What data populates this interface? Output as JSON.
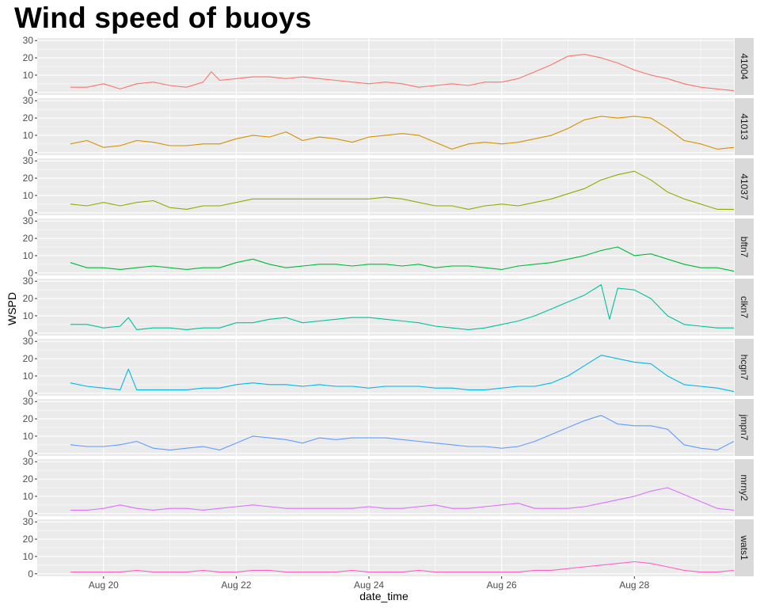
{
  "chart_data": {
    "type": "line",
    "title": "Wind speed of buoys",
    "xlabel": "date_time",
    "ylabel": "WSPD",
    "x_range": [
      "2018-08-19T00:00",
      "2018-08-29T12:00"
    ],
    "x_ticks": [
      {
        "date": "2018-08-20",
        "label": "Aug 20"
      },
      {
        "date": "2018-08-22",
        "label": "Aug 22"
      },
      {
        "date": "2018-08-24",
        "label": "Aug 24"
      },
      {
        "date": "2018-08-26",
        "label": "Aug 26"
      },
      {
        "date": "2018-08-28",
        "label": "Aug 28"
      }
    ],
    "ylim": [
      0,
      30
    ],
    "y_ticks": [
      0,
      10,
      20,
      30
    ],
    "grid": true,
    "facet_layout": "stacked rows with strip labels on the right",
    "panel_background": "#ebebeb",
    "grid_color": "#ffffff",
    "strip_background": "#d9d9d9",
    "series": [
      {
        "name": "41004",
        "color": "#F8766D",
        "x": [
          "2018-08-19T12:00",
          "2018-08-19T18:00",
          "2018-08-20T00:00",
          "2018-08-20T06:00",
          "2018-08-20T12:00",
          "2018-08-20T18:00",
          "2018-08-21T00:00",
          "2018-08-21T06:00",
          "2018-08-21T12:00",
          "2018-08-21T15:00",
          "2018-08-21T18:00",
          "2018-08-22T00:00",
          "2018-08-22T06:00",
          "2018-08-22T12:00",
          "2018-08-22T18:00",
          "2018-08-23T00:00",
          "2018-08-23T06:00",
          "2018-08-23T12:00",
          "2018-08-23T18:00",
          "2018-08-24T00:00",
          "2018-08-24T06:00",
          "2018-08-24T12:00",
          "2018-08-24T18:00",
          "2018-08-25T00:00",
          "2018-08-25T06:00",
          "2018-08-25T12:00",
          "2018-08-25T18:00",
          "2018-08-26T00:00",
          "2018-08-26T06:00",
          "2018-08-26T12:00",
          "2018-08-26T18:00",
          "2018-08-27T00:00",
          "2018-08-27T06:00",
          "2018-08-27T12:00",
          "2018-08-27T18:00",
          "2018-08-28T00:00",
          "2018-08-28T06:00",
          "2018-08-28T12:00",
          "2018-08-28T18:00",
          "2018-08-29T00:00",
          "2018-08-29T06:00",
          "2018-08-29T12:00"
        ],
        "values": [
          3,
          3,
          5,
          2,
          5,
          6,
          4,
          3,
          6,
          12,
          7,
          8,
          9,
          9,
          8,
          9,
          8,
          7,
          6,
          5,
          6,
          5,
          3,
          4,
          5,
          4,
          6,
          6,
          8,
          12,
          16,
          21,
          22,
          20,
          17,
          13,
          10,
          8,
          5,
          3,
          2,
          1
        ]
      },
      {
        "name": "41013",
        "color": "#D39200",
        "x": [
          "2018-08-19T12:00",
          "2018-08-19T18:00",
          "2018-08-20T00:00",
          "2018-08-20T06:00",
          "2018-08-20T12:00",
          "2018-08-20T18:00",
          "2018-08-21T00:00",
          "2018-08-21T06:00",
          "2018-08-21T12:00",
          "2018-08-21T18:00",
          "2018-08-22T00:00",
          "2018-08-22T06:00",
          "2018-08-22T12:00",
          "2018-08-22T18:00",
          "2018-08-23T00:00",
          "2018-08-23T06:00",
          "2018-08-23T12:00",
          "2018-08-23T18:00",
          "2018-08-24T00:00",
          "2018-08-24T06:00",
          "2018-08-24T12:00",
          "2018-08-24T18:00",
          "2018-08-25T00:00",
          "2018-08-25T06:00",
          "2018-08-25T12:00",
          "2018-08-25T18:00",
          "2018-08-26T00:00",
          "2018-08-26T06:00",
          "2018-08-26T12:00",
          "2018-08-26T18:00",
          "2018-08-27T00:00",
          "2018-08-27T06:00",
          "2018-08-27T12:00",
          "2018-08-27T18:00",
          "2018-08-28T00:00",
          "2018-08-28T06:00",
          "2018-08-28T12:00",
          "2018-08-28T18:00",
          "2018-08-29T00:00",
          "2018-08-29T06:00",
          "2018-08-29T12:00"
        ],
        "values": [
          5,
          7,
          3,
          4,
          7,
          6,
          4,
          4,
          5,
          5,
          8,
          10,
          9,
          12,
          7,
          9,
          8,
          6,
          9,
          10,
          11,
          10,
          6,
          2,
          5,
          6,
          5,
          6,
          8,
          10,
          14,
          19,
          21,
          20,
          21,
          20,
          14,
          7,
          5,
          2,
          3
        ]
      },
      {
        "name": "41037",
        "color": "#93AA00",
        "x": [
          "2018-08-19T12:00",
          "2018-08-19T18:00",
          "2018-08-20T00:00",
          "2018-08-20T06:00",
          "2018-08-20T12:00",
          "2018-08-20T18:00",
          "2018-08-21T00:00",
          "2018-08-21T06:00",
          "2018-08-21T12:00",
          "2018-08-21T18:00",
          "2018-08-22T00:00",
          "2018-08-22T06:00",
          "2018-08-23T00:00",
          "2018-08-23T12:00",
          "2018-08-24T00:00",
          "2018-08-24T06:00",
          "2018-08-24T12:00",
          "2018-08-24T18:00",
          "2018-08-25T00:00",
          "2018-08-25T06:00",
          "2018-08-25T12:00",
          "2018-08-25T18:00",
          "2018-08-26T00:00",
          "2018-08-26T06:00",
          "2018-08-26T12:00",
          "2018-08-26T18:00",
          "2018-08-27T00:00",
          "2018-08-27T06:00",
          "2018-08-27T12:00",
          "2018-08-27T18:00",
          "2018-08-28T00:00",
          "2018-08-28T06:00",
          "2018-08-28T12:00",
          "2018-08-28T18:00",
          "2018-08-29T00:00",
          "2018-08-29T06:00",
          "2018-08-29T12:00"
        ],
        "values": [
          5,
          4,
          6,
          4,
          6,
          7,
          3,
          2,
          4,
          4,
          6,
          8,
          8,
          8,
          8,
          9,
          8,
          6,
          4,
          4,
          2,
          4,
          5,
          4,
          6,
          8,
          11,
          14,
          19,
          22,
          24,
          19,
          12,
          8,
          5,
          2,
          2
        ]
      },
      {
        "name": "bftn7",
        "color": "#00BA38",
        "x": [
          "2018-08-19T12:00",
          "2018-08-19T18:00",
          "2018-08-20T00:00",
          "2018-08-20T06:00",
          "2018-08-20T12:00",
          "2018-08-20T18:00",
          "2018-08-21T00:00",
          "2018-08-21T06:00",
          "2018-08-21T12:00",
          "2018-08-21T18:00",
          "2018-08-22T00:00",
          "2018-08-22T06:00",
          "2018-08-22T12:00",
          "2018-08-22T18:00",
          "2018-08-23T00:00",
          "2018-08-23T06:00",
          "2018-08-23T12:00",
          "2018-08-23T18:00",
          "2018-08-24T00:00",
          "2018-08-24T06:00",
          "2018-08-24T12:00",
          "2018-08-24T18:00",
          "2018-08-25T00:00",
          "2018-08-25T06:00",
          "2018-08-25T12:00",
          "2018-08-25T18:00",
          "2018-08-26T00:00",
          "2018-08-26T06:00",
          "2018-08-26T12:00",
          "2018-08-26T18:00",
          "2018-08-27T00:00",
          "2018-08-27T06:00",
          "2018-08-27T12:00",
          "2018-08-27T18:00",
          "2018-08-28T00:00",
          "2018-08-28T06:00",
          "2018-08-28T12:00",
          "2018-08-28T18:00",
          "2018-08-29T00:00",
          "2018-08-29T06:00",
          "2018-08-29T12:00"
        ],
        "values": [
          6,
          3,
          3,
          2,
          3,
          4,
          3,
          2,
          3,
          3,
          6,
          8,
          5,
          3,
          4,
          5,
          5,
          4,
          5,
          5,
          4,
          5,
          3,
          4,
          4,
          3,
          2,
          4,
          5,
          6,
          8,
          10,
          13,
          15,
          10,
          11,
          8,
          5,
          3,
          3,
          1
        ]
      },
      {
        "name": "clkn7",
        "color": "#00C19F",
        "x": [
          "2018-08-19T12:00",
          "2018-08-19T18:00",
          "2018-08-20T00:00",
          "2018-08-20T06:00",
          "2018-08-20T09:00",
          "2018-08-20T12:00",
          "2018-08-20T18:00",
          "2018-08-21T00:00",
          "2018-08-21T06:00",
          "2018-08-21T12:00",
          "2018-08-21T18:00",
          "2018-08-22T00:00",
          "2018-08-22T06:00",
          "2018-08-22T12:00",
          "2018-08-22T18:00",
          "2018-08-23T00:00",
          "2018-08-23T06:00",
          "2018-08-23T12:00",
          "2018-08-23T18:00",
          "2018-08-24T00:00",
          "2018-08-24T06:00",
          "2018-08-24T12:00",
          "2018-08-24T18:00",
          "2018-08-25T00:00",
          "2018-08-25T06:00",
          "2018-08-25T12:00",
          "2018-08-25T18:00",
          "2018-08-26T00:00",
          "2018-08-26T06:00",
          "2018-08-26T12:00",
          "2018-08-26T18:00",
          "2018-08-27T00:00",
          "2018-08-27T06:00",
          "2018-08-27T12:00",
          "2018-08-27T15:00",
          "2018-08-27T18:00",
          "2018-08-28T00:00",
          "2018-08-28T06:00",
          "2018-08-28T12:00",
          "2018-08-28T18:00",
          "2018-08-29T00:00",
          "2018-08-29T06:00",
          "2018-08-29T12:00"
        ],
        "values": [
          5,
          5,
          3,
          4,
          9,
          2,
          3,
          3,
          2,
          3,
          3,
          6,
          6,
          8,
          9,
          6,
          7,
          8,
          9,
          9,
          8,
          7,
          6,
          4,
          3,
          2,
          3,
          5,
          7,
          10,
          14,
          18,
          22,
          28,
          8,
          26,
          25,
          20,
          10,
          5,
          4,
          3,
          3
        ]
      },
      {
        "name": "hcgn7",
        "color": "#00B9E3",
        "x": [
          "2018-08-19T12:00",
          "2018-08-19T18:00",
          "2018-08-20T00:00",
          "2018-08-20T06:00",
          "2018-08-20T09:00",
          "2018-08-20T12:00",
          "2018-08-20T18:00",
          "2018-08-21T00:00",
          "2018-08-21T06:00",
          "2018-08-21T12:00",
          "2018-08-21T18:00",
          "2018-08-22T00:00",
          "2018-08-22T06:00",
          "2018-08-22T12:00",
          "2018-08-22T18:00",
          "2018-08-23T00:00",
          "2018-08-23T06:00",
          "2018-08-23T12:00",
          "2018-08-23T18:00",
          "2018-08-24T00:00",
          "2018-08-24T06:00",
          "2018-08-24T12:00",
          "2018-08-24T18:00",
          "2018-08-25T00:00",
          "2018-08-25T06:00",
          "2018-08-25T12:00",
          "2018-08-25T18:00",
          "2018-08-26T00:00",
          "2018-08-26T06:00",
          "2018-08-26T12:00",
          "2018-08-26T18:00",
          "2018-08-27T00:00",
          "2018-08-27T06:00",
          "2018-08-27T12:00",
          "2018-08-27T18:00",
          "2018-08-28T00:00",
          "2018-08-28T06:00",
          "2018-08-28T12:00",
          "2018-08-28T18:00",
          "2018-08-29T00:00",
          "2018-08-29T06:00",
          "2018-08-29T12:00"
        ],
        "values": [
          6,
          4,
          3,
          2,
          14,
          2,
          2,
          2,
          2,
          3,
          3,
          5,
          6,
          5,
          5,
          4,
          5,
          4,
          4,
          3,
          4,
          4,
          4,
          3,
          3,
          2,
          2,
          3,
          4,
          4,
          6,
          10,
          16,
          22,
          20,
          18,
          17,
          10,
          5,
          4,
          3,
          1
        ]
      },
      {
        "name": "jmpn7",
        "color": "#619CFF",
        "x": [
          "2018-08-19T12:00",
          "2018-08-19T18:00",
          "2018-08-20T00:00",
          "2018-08-20T06:00",
          "2018-08-20T12:00",
          "2018-08-20T18:00",
          "2018-08-21T00:00",
          "2018-08-21T06:00",
          "2018-08-21T12:00",
          "2018-08-21T18:00",
          "2018-08-22T00:00",
          "2018-08-22T06:00",
          "2018-08-22T12:00",
          "2018-08-22T18:00",
          "2018-08-23T00:00",
          "2018-08-23T06:00",
          "2018-08-23T12:00",
          "2018-08-23T18:00",
          "2018-08-24T00:00",
          "2018-08-24T06:00",
          "2018-08-24T12:00",
          "2018-08-24T18:00",
          "2018-08-25T00:00",
          "2018-08-25T06:00",
          "2018-08-25T12:00",
          "2018-08-25T18:00",
          "2018-08-26T00:00",
          "2018-08-26T06:00",
          "2018-08-26T12:00",
          "2018-08-26T18:00",
          "2018-08-27T00:00",
          "2018-08-27T06:00",
          "2018-08-27T12:00",
          "2018-08-27T18:00",
          "2018-08-28T00:00",
          "2018-08-28T06:00",
          "2018-08-28T12:00",
          "2018-08-28T18:00",
          "2018-08-29T00:00",
          "2018-08-29T06:00",
          "2018-08-29T12:00"
        ],
        "values": [
          5,
          4,
          4,
          5,
          7,
          3,
          2,
          3,
          4,
          2,
          6,
          10,
          9,
          8,
          6,
          9,
          8,
          9,
          9,
          9,
          8,
          7,
          6,
          5,
          4,
          4,
          3,
          4,
          7,
          11,
          15,
          19,
          22,
          17,
          16,
          16,
          14,
          5,
          3,
          2,
          7
        ]
      },
      {
        "name": "mrny2",
        "color": "#DB72FB",
        "x": [
          "2018-08-19T12:00",
          "2018-08-19T18:00",
          "2018-08-20T00:00",
          "2018-08-20T06:00",
          "2018-08-20T12:00",
          "2018-08-20T18:00",
          "2018-08-21T00:00",
          "2018-08-21T06:00",
          "2018-08-21T12:00",
          "2018-08-21T18:00",
          "2018-08-22T00:00",
          "2018-08-22T06:00",
          "2018-08-22T12:00",
          "2018-08-22T18:00",
          "2018-08-23T00:00",
          "2018-08-23T06:00",
          "2018-08-23T12:00",
          "2018-08-23T18:00",
          "2018-08-24T00:00",
          "2018-08-24T06:00",
          "2018-08-24T12:00",
          "2018-08-24T18:00",
          "2018-08-25T00:00",
          "2018-08-25T06:00",
          "2018-08-25T12:00",
          "2018-08-25T18:00",
          "2018-08-26T00:00",
          "2018-08-26T06:00",
          "2018-08-26T12:00",
          "2018-08-26T18:00",
          "2018-08-27T00:00",
          "2018-08-27T06:00",
          "2018-08-27T12:00",
          "2018-08-27T18:00",
          "2018-08-28T00:00",
          "2018-08-28T06:00",
          "2018-08-28T12:00",
          "2018-08-28T18:00",
          "2018-08-29T00:00",
          "2018-08-29T06:00",
          "2018-08-29T12:00"
        ],
        "values": [
          2,
          2,
          3,
          5,
          3,
          2,
          3,
          3,
          2,
          3,
          4,
          5,
          4,
          3,
          3,
          3,
          3,
          3,
          4,
          3,
          3,
          4,
          5,
          3,
          3,
          4,
          5,
          6,
          3,
          3,
          3,
          4,
          6,
          8,
          10,
          13,
          15,
          11,
          7,
          3,
          2
        ]
      },
      {
        "name": "wats1",
        "color": "#FF61C3",
        "x": [
          "2018-08-19T12:00",
          "2018-08-19T18:00",
          "2018-08-20T00:00",
          "2018-08-20T06:00",
          "2018-08-20T12:00",
          "2018-08-20T18:00",
          "2018-08-21T00:00",
          "2018-08-21T06:00",
          "2018-08-21T12:00",
          "2018-08-21T18:00",
          "2018-08-22T00:00",
          "2018-08-22T06:00",
          "2018-08-22T12:00",
          "2018-08-22T18:00",
          "2018-08-23T00:00",
          "2018-08-23T06:00",
          "2018-08-23T12:00",
          "2018-08-23T18:00",
          "2018-08-24T00:00",
          "2018-08-24T06:00",
          "2018-08-24T12:00",
          "2018-08-24T18:00",
          "2018-08-25T00:00",
          "2018-08-25T06:00",
          "2018-08-25T12:00",
          "2018-08-25T18:00",
          "2018-08-26T00:00",
          "2018-08-26T06:00",
          "2018-08-26T12:00",
          "2018-08-26T18:00",
          "2018-08-27T00:00",
          "2018-08-27T06:00",
          "2018-08-27T12:00",
          "2018-08-27T18:00",
          "2018-08-28T00:00",
          "2018-08-28T06:00",
          "2018-08-28T12:00",
          "2018-08-28T18:00",
          "2018-08-29T00:00",
          "2018-08-29T06:00",
          "2018-08-29T12:00"
        ],
        "values": [
          1,
          1,
          1,
          1,
          2,
          1,
          1,
          1,
          2,
          1,
          1,
          2,
          2,
          1,
          1,
          1,
          1,
          2,
          1,
          1,
          1,
          2,
          1,
          1,
          1,
          1,
          1,
          1,
          2,
          2,
          3,
          4,
          5,
          6,
          7,
          6,
          4,
          2,
          1,
          1,
          2
        ]
      }
    ]
  }
}
